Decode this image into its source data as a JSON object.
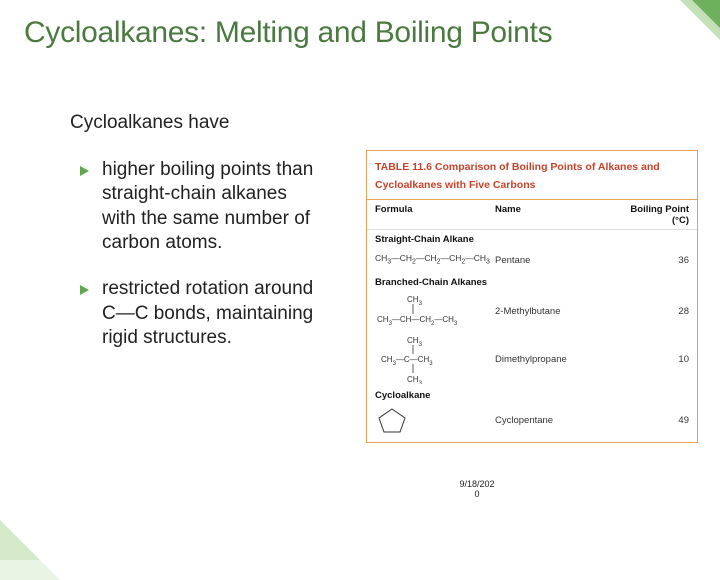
{
  "title": "Cycloalkanes: Melting and Boiling Points",
  "intro": "Cycloalkanes have",
  "bullets": [
    "higher boiling points than straight-chain alkanes with the same number of carbon atoms.",
    "restricted rotation around C—C bonds, maintaining rigid structures."
  ],
  "table": {
    "caption_prefix": "TABLE 11.6",
    "caption_rest": "Comparison of Boiling Points of Alkanes and Cycloalkanes with Five Carbons",
    "columns": [
      "Formula",
      "Name",
      "Boiling Point (°C)"
    ],
    "sections": [
      {
        "label": "Straight-Chain Alkane",
        "rows": [
          {
            "formula_text": "CH3—CH2—CH2—CH2—CH3",
            "name": "Pentane",
            "bp": "36"
          }
        ]
      },
      {
        "label": "Branched-Chain Alkanes",
        "rows": [
          {
            "formula_svg": "mb",
            "name": "2-Methylbutane",
            "bp": "28"
          },
          {
            "formula_svg": "dmp",
            "name": "Dimethylpropane",
            "bp": "10"
          }
        ]
      },
      {
        "label": "Cycloalkane",
        "rows": [
          {
            "formula_svg": "pent",
            "name": "Cyclopentane",
            "bp": "49"
          }
        ]
      }
    ],
    "footnote": "",
    "border_color": "#e7a25a",
    "caption_color": "#c8432b"
  },
  "date": "9/18/2020",
  "colors": {
    "title": "#4a7a3f",
    "bullet_arrow": "#5fa84b",
    "deco_green": "#5fa84b",
    "deco_green_light": "#a9d39a"
  }
}
